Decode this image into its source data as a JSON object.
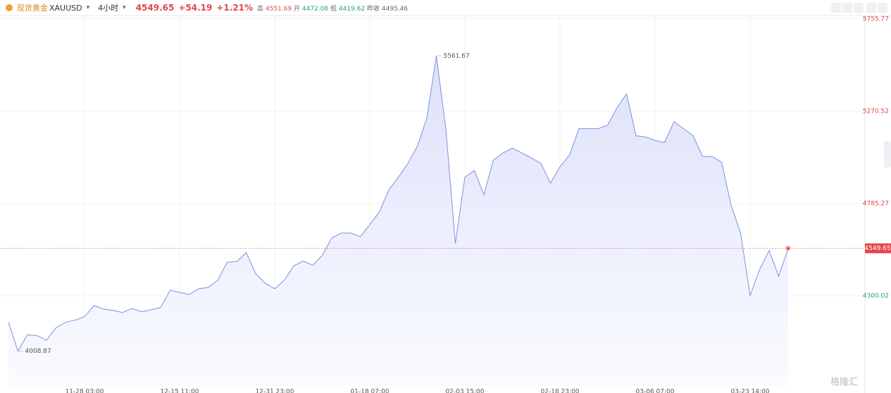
{
  "header": {
    "symbol_name": "现货黄金",
    "symbol": "XAUUSD",
    "interval": "4小时",
    "price": "4549.65",
    "change": "+54.19",
    "change_pct": "+1.21%",
    "high_label": "高",
    "high": "4551.69",
    "open_label": "开",
    "open": "4472.08",
    "low_label": "低",
    "low": "4419.62",
    "prev_close_label": "昨收",
    "prev_close": "4495.46"
  },
  "watermark": "格隆汇",
  "chart_data": {
    "type": "area",
    "color": "#7d8fe2",
    "fill": "#e3e6fb",
    "categories": [
      null,
      null,
      null,
      null,
      null,
      null,
      null,
      null,
      "11-28 03:00",
      null,
      null,
      null,
      null,
      null,
      null,
      null,
      null,
      null,
      "12-15 11:00",
      null,
      null,
      null,
      null,
      null,
      null,
      null,
      null,
      null,
      "12-31 23:00",
      null,
      null,
      null,
      null,
      null,
      null,
      null,
      null,
      null,
      "01-18 07:00",
      null,
      null,
      null,
      null,
      null,
      null,
      null,
      null,
      null,
      "02-03 15:00",
      null,
      null,
      null,
      null,
      null,
      null,
      null,
      null,
      null,
      "02-18 23:00",
      null,
      null,
      null,
      null,
      null,
      null,
      null,
      null,
      null,
      "03-06 07:00",
      null,
      null,
      null,
      null,
      null,
      null,
      null,
      null,
      null,
      "03-23 14:00",
      null,
      null,
      null,
      null
    ],
    "values": [
      4161,
      4008.87,
      4095,
      4091,
      4066,
      4132,
      4161,
      4172,
      4190,
      4249,
      4230,
      4223,
      4212,
      4234,
      4216,
      4227,
      4238,
      4329,
      4318,
      4307,
      4337,
      4344,
      4381,
      4476,
      4480,
      4527,
      4417,
      4366,
      4337,
      4381,
      4457,
      4483,
      4461,
      4512,
      4604,
      4630,
      4630,
      4611,
      4674,
      4740,
      4857,
      4923,
      4996,
      5087,
      5234,
      5561.67,
      5179,
      4575,
      4923,
      4959,
      4831,
      5014,
      5051,
      5077,
      5051,
      5025,
      4996,
      4893,
      4978,
      5040,
      5179,
      5179,
      5179,
      5197,
      5289,
      5362,
      5142,
      5135,
      5117,
      5106,
      5216,
      5179,
      5142,
      5033,
      5033,
      5003,
      4776,
      4630,
      4300,
      4439,
      4538,
      4403,
      4549.65
    ],
    "ylim": [
      3826,
      5774
    ],
    "yticks": [
      5755.77,
      5270.52,
      4785.27,
      4300.02
    ],
    "grid": true,
    "last_price": 4549.65,
    "up_color": "#e0474c",
    "down_color": "#27a17a"
  }
}
